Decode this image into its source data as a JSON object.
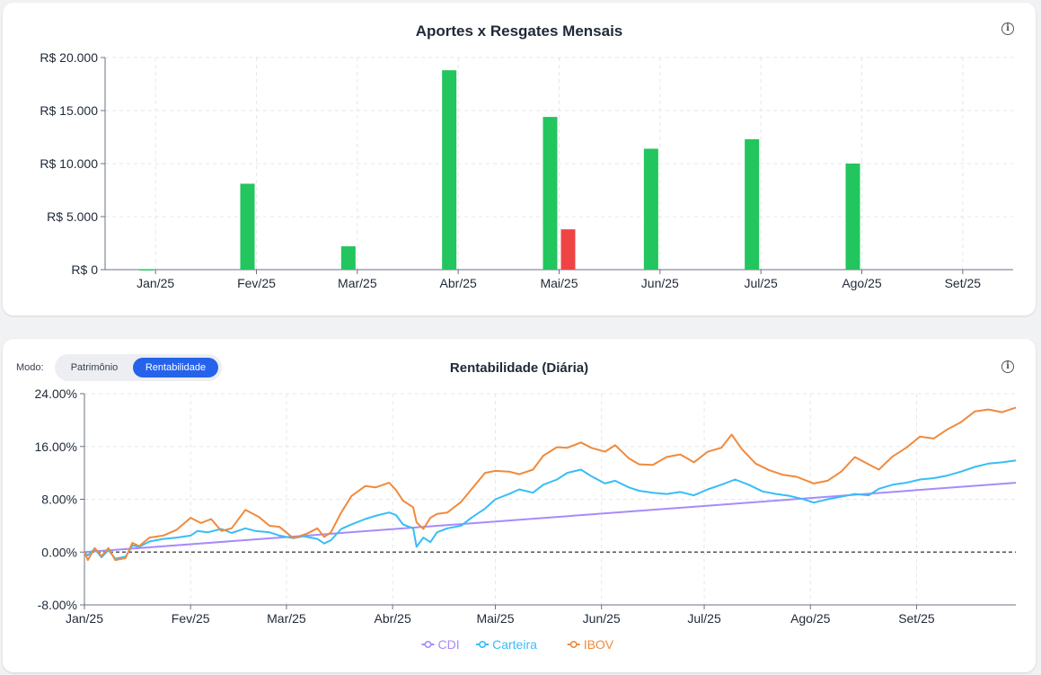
{
  "top_card": {
    "title": "Aportes x Resgates Mensais"
  },
  "bottom_card": {
    "title": "Rentabilidade (Diária)",
    "mode_label": "Modo:",
    "toggle": {
      "options": [
        "Patrimônio",
        "Rentabilidade"
      ],
      "selected": "Rentabilidade"
    }
  },
  "colors": {
    "aporte": "#22c55e",
    "resgate": "#ef4444",
    "CDI": "#a78bfa",
    "Carteira": "#38bdf8",
    "IBOV": "#f08a3c",
    "toggle_active": "#2563eb"
  },
  "chart_data": [
    {
      "type": "bar",
      "title": "Aportes x Resgates Mensais",
      "categories": [
        "Jan/25",
        "Fev/25",
        "Mar/25",
        "Abr/25",
        "Mai/25",
        "Jun/25",
        "Jul/25",
        "Ago/25",
        "Set/25"
      ],
      "series": [
        {
          "values": [
            50,
            8100,
            2200,
            18800,
            14400,
            11400,
            12300,
            10000,
            0
          ]
        },
        {
          "values": [
            0,
            0,
            0,
            0,
            3800,
            0,
            0,
            0,
            0
          ]
        }
      ],
      "ylim": [
        0,
        20000
      ],
      "yticks": [
        0,
        5000,
        10000,
        15000,
        20000
      ],
      "ytick_labels": [
        "R$ 0",
        "R$ 5.000",
        "R$ 10.000",
        "R$ 15.000",
        "R$ 20.000"
      ],
      "grid": true
    },
    {
      "type": "line",
      "title": "Rentabilidade (Diária)",
      "x_unit": "date",
      "x_ticks": [
        "Jan/25",
        "Fev/25",
        "Mar/25",
        "Abr/25",
        "Mai/25",
        "Jun/25",
        "Jul/25",
        "Ago/25",
        "Set/25"
      ],
      "x_tick_dates": [
        "2025-01-01",
        "2025-02-01",
        "2025-03-01",
        "2025-04-01",
        "2025-05-01",
        "2025-06-01",
        "2025-07-01",
        "2025-08-01",
        "2025-09-01"
      ],
      "xlim": [
        "2025-01-01",
        "2025-09-30"
      ],
      "ylim": [
        -8,
        24
      ],
      "yticks": [
        -8,
        0,
        8,
        16,
        24
      ],
      "ytick_labels": [
        "-8.00%",
        "0.00%",
        "8.00%",
        "16.00%",
        "24.00%"
      ],
      "grid": true,
      "zero_line": true,
      "legend": {
        "position": "bottom",
        "entries": [
          "CDI",
          "Carteira",
          "IBOV"
        ]
      },
      "series": [
        {
          "name": "CDI",
          "points": [
            [
              "2025-01-01",
              0.0
            ],
            [
              "2025-09-30",
              10.5
            ]
          ]
        },
        {
          "name": "Carteira",
          "points": [
            [
              "2025-01-01",
              0.0
            ],
            [
              "2025-01-02",
              -0.5
            ],
            [
              "2025-01-04",
              0.5
            ],
            [
              "2025-01-06",
              -0.8
            ],
            [
              "2025-01-08",
              0.3
            ],
            [
              "2025-01-10",
              -1.0
            ],
            [
              "2025-01-13",
              -0.7
            ],
            [
              "2025-01-15",
              1.0
            ],
            [
              "2025-01-17",
              0.8
            ],
            [
              "2025-01-20",
              1.6
            ],
            [
              "2025-01-24",
              2.0
            ],
            [
              "2025-01-28",
              2.2
            ],
            [
              "2025-02-01",
              2.5
            ],
            [
              "2025-02-03",
              3.2
            ],
            [
              "2025-02-06",
              3.0
            ],
            [
              "2025-02-10",
              3.5
            ],
            [
              "2025-02-13",
              2.9
            ],
            [
              "2025-02-17",
              3.6
            ],
            [
              "2025-02-20",
              3.2
            ],
            [
              "2025-02-24",
              3.0
            ],
            [
              "2025-02-27",
              2.5
            ],
            [
              "2025-03-03",
              2.1
            ],
            [
              "2025-03-06",
              2.4
            ],
            [
              "2025-03-10",
              2.0
            ],
            [
              "2025-03-12",
              1.3
            ],
            [
              "2025-03-14",
              1.8
            ],
            [
              "2025-03-17",
              3.5
            ],
            [
              "2025-03-20",
              4.2
            ],
            [
              "2025-03-24",
              5.0
            ],
            [
              "2025-03-27",
              5.5
            ],
            [
              "2025-03-31",
              6.0
            ],
            [
              "2025-04-02",
              5.6
            ],
            [
              "2025-04-04",
              4.2
            ],
            [
              "2025-04-07",
              3.6
            ],
            [
              "2025-04-08",
              0.8
            ],
            [
              "2025-04-10",
              2.2
            ],
            [
              "2025-04-12",
              1.5
            ],
            [
              "2025-04-14",
              3.0
            ],
            [
              "2025-04-17",
              3.6
            ],
            [
              "2025-04-21",
              4.0
            ],
            [
              "2025-04-24",
              5.2
            ],
            [
              "2025-04-28",
              6.6
            ],
            [
              "2025-05-01",
              8.0
            ],
            [
              "2025-05-05",
              8.8
            ],
            [
              "2025-05-08",
              9.5
            ],
            [
              "2025-05-12",
              9.0
            ],
            [
              "2025-05-15",
              10.2
            ],
            [
              "2025-05-19",
              11.0
            ],
            [
              "2025-05-22",
              12.0
            ],
            [
              "2025-05-26",
              12.5
            ],
            [
              "2025-05-29",
              11.5
            ],
            [
              "2025-06-02",
              10.4
            ],
            [
              "2025-06-05",
              10.8
            ],
            [
              "2025-06-09",
              9.8
            ],
            [
              "2025-06-12",
              9.3
            ],
            [
              "2025-06-16",
              9.0
            ],
            [
              "2025-06-20",
              8.8
            ],
            [
              "2025-06-24",
              9.1
            ],
            [
              "2025-06-28",
              8.6
            ],
            [
              "2025-07-02",
              9.5
            ],
            [
              "2025-07-06",
              10.2
            ],
            [
              "2025-07-10",
              11.0
            ],
            [
              "2025-07-14",
              10.2
            ],
            [
              "2025-07-18",
              9.2
            ],
            [
              "2025-07-22",
              8.8
            ],
            [
              "2025-07-26",
              8.5
            ],
            [
              "2025-07-30",
              8.0
            ],
            [
              "2025-08-02",
              7.5
            ],
            [
              "2025-08-06",
              8.0
            ],
            [
              "2025-08-10",
              8.4
            ],
            [
              "2025-08-14",
              8.8
            ],
            [
              "2025-08-18",
              8.6
            ],
            [
              "2025-08-21",
              9.6
            ],
            [
              "2025-08-25",
              10.2
            ],
            [
              "2025-08-29",
              10.5
            ],
            [
              "2025-09-02",
              11.0
            ],
            [
              "2025-09-06",
              11.2
            ],
            [
              "2025-09-10",
              11.6
            ],
            [
              "2025-09-14",
              12.2
            ],
            [
              "2025-09-18",
              12.9
            ],
            [
              "2025-09-22",
              13.4
            ],
            [
              "2025-09-26",
              13.6
            ],
            [
              "2025-09-30",
              13.9
            ]
          ]
        },
        {
          "name": "IBOV",
          "points": [
            [
              "2025-01-01",
              0.0
            ],
            [
              "2025-01-02",
              -1.2
            ],
            [
              "2025-01-04",
              0.6
            ],
            [
              "2025-01-06",
              -0.6
            ],
            [
              "2025-01-08",
              0.6
            ],
            [
              "2025-01-10",
              -1.2
            ],
            [
              "2025-01-13",
              -0.9
            ],
            [
              "2025-01-15",
              1.4
            ],
            [
              "2025-01-17",
              0.9
            ],
            [
              "2025-01-20",
              2.2
            ],
            [
              "2025-01-24",
              2.5
            ],
            [
              "2025-01-28",
              3.4
            ],
            [
              "2025-02-01",
              5.2
            ],
            [
              "2025-02-04",
              4.4
            ],
            [
              "2025-02-07",
              5.0
            ],
            [
              "2025-02-10",
              3.2
            ],
            [
              "2025-02-13",
              3.6
            ],
            [
              "2025-02-17",
              6.4
            ],
            [
              "2025-02-21",
              5.3
            ],
            [
              "2025-02-24",
              4.0
            ],
            [
              "2025-02-27",
              3.8
            ],
            [
              "2025-03-03",
              2.1
            ],
            [
              "2025-03-07",
              2.8
            ],
            [
              "2025-03-10",
              3.6
            ],
            [
              "2025-03-12",
              2.3
            ],
            [
              "2025-03-14",
              3.0
            ],
            [
              "2025-03-17",
              6.0
            ],
            [
              "2025-03-20",
              8.5
            ],
            [
              "2025-03-24",
              10.0
            ],
            [
              "2025-03-27",
              9.8
            ],
            [
              "2025-03-31",
              10.5
            ],
            [
              "2025-04-02",
              9.4
            ],
            [
              "2025-04-04",
              7.8
            ],
            [
              "2025-04-07",
              6.8
            ],
            [
              "2025-04-08",
              4.5
            ],
            [
              "2025-04-10",
              3.5
            ],
            [
              "2025-04-12",
              5.2
            ],
            [
              "2025-04-14",
              5.8
            ],
            [
              "2025-04-17",
              6.0
            ],
            [
              "2025-04-21",
              7.6
            ],
            [
              "2025-04-24",
              9.5
            ],
            [
              "2025-04-28",
              12.0
            ],
            [
              "2025-05-01",
              12.3
            ],
            [
              "2025-05-05",
              12.2
            ],
            [
              "2025-05-08",
              11.8
            ],
            [
              "2025-05-12",
              12.5
            ],
            [
              "2025-05-15",
              14.6
            ],
            [
              "2025-05-19",
              15.9
            ],
            [
              "2025-05-22",
              15.8
            ],
            [
              "2025-05-26",
              16.6
            ],
            [
              "2025-05-29",
              15.8
            ],
            [
              "2025-06-02",
              15.2
            ],
            [
              "2025-06-05",
              16.2
            ],
            [
              "2025-06-09",
              14.2
            ],
            [
              "2025-06-12",
              13.3
            ],
            [
              "2025-06-16",
              13.2
            ],
            [
              "2025-06-20",
              14.4
            ],
            [
              "2025-06-24",
              14.8
            ],
            [
              "2025-06-28",
              13.6
            ],
            [
              "2025-07-02",
              15.2
            ],
            [
              "2025-07-06",
              15.8
            ],
            [
              "2025-07-09",
              17.8
            ],
            [
              "2025-07-12",
              15.6
            ],
            [
              "2025-07-16",
              13.4
            ],
            [
              "2025-07-20",
              12.4
            ],
            [
              "2025-07-24",
              11.7
            ],
            [
              "2025-07-28",
              11.4
            ],
            [
              "2025-08-02",
              10.4
            ],
            [
              "2025-08-06",
              10.8
            ],
            [
              "2025-08-10",
              12.2
            ],
            [
              "2025-08-14",
              14.4
            ],
            [
              "2025-08-18",
              13.3
            ],
            [
              "2025-08-21",
              12.5
            ],
            [
              "2025-08-25",
              14.5
            ],
            [
              "2025-08-29",
              15.8
            ],
            [
              "2025-09-02",
              17.5
            ],
            [
              "2025-09-06",
              17.2
            ],
            [
              "2025-09-10",
              18.6
            ],
            [
              "2025-09-14",
              19.7
            ],
            [
              "2025-09-18",
              21.3
            ],
            [
              "2025-09-22",
              21.6
            ],
            [
              "2025-09-26",
              21.2
            ],
            [
              "2025-09-30",
              21.9
            ]
          ]
        }
      ]
    }
  ]
}
